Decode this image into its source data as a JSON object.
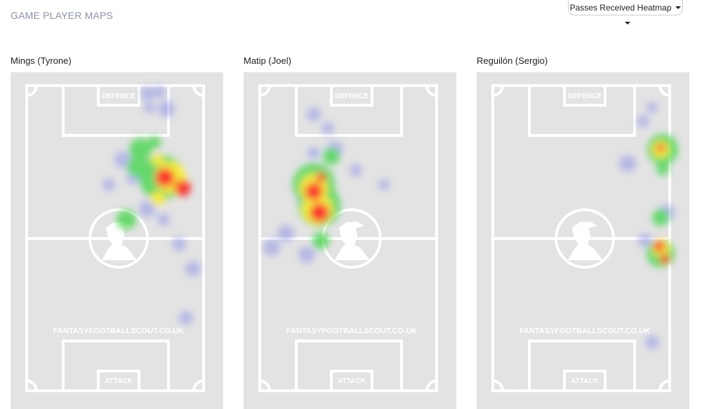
{
  "header": {
    "title": "GAME PLAYER MAPS",
    "dropdown": "Passes Received Heatmap"
  },
  "pitch": {
    "top_label": "DEFENCE",
    "bottom_label": "ATTACK",
    "watermark": "FANTASYFOOTBALLSCOUT.CO.UK"
  },
  "maps": [
    {
      "player": "Mings (Tyrone)"
    },
    {
      "player": "Matip (Joel)"
    },
    {
      "player": "Reguilón (Sergio)"
    }
  ]
}
